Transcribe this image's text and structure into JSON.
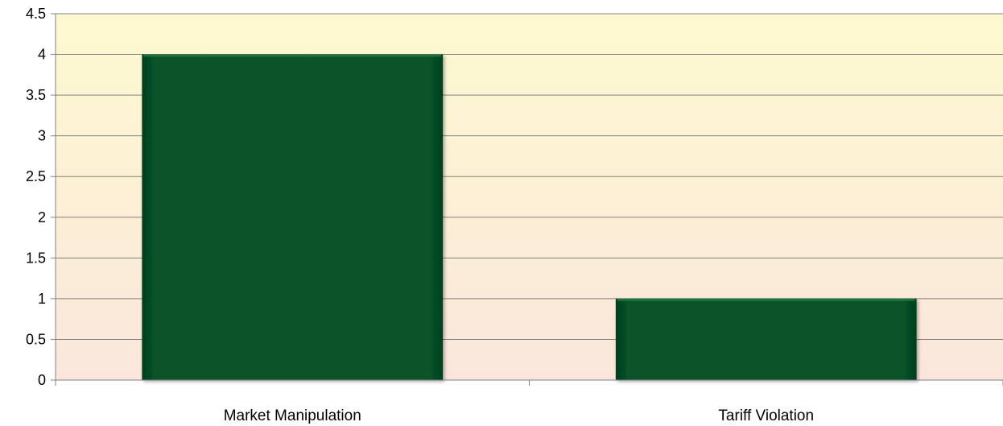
{
  "chart_data": {
    "type": "bar",
    "categories": [
      "Market Manipulation",
      "Tariff Violation"
    ],
    "values": [
      4,
      1
    ],
    "title": "",
    "xlabel": "",
    "ylabel": "",
    "ylim": [
      0,
      4.5
    ],
    "yticks": [
      "0",
      "0.5",
      "1",
      "1.5",
      "2",
      "2.5",
      "3",
      "3.5",
      "4",
      "4.5"
    ],
    "grid": true,
    "legend": "none",
    "colors": {
      "bar": "#07532a",
      "bar_highlight": "#1f7a45",
      "bar_shadow": "#033d1c",
      "plot_bg_top": "#fdf9cf",
      "plot_bg_bottom": "#fae6dc",
      "grid": "#808080",
      "axis": "#808080"
    }
  }
}
